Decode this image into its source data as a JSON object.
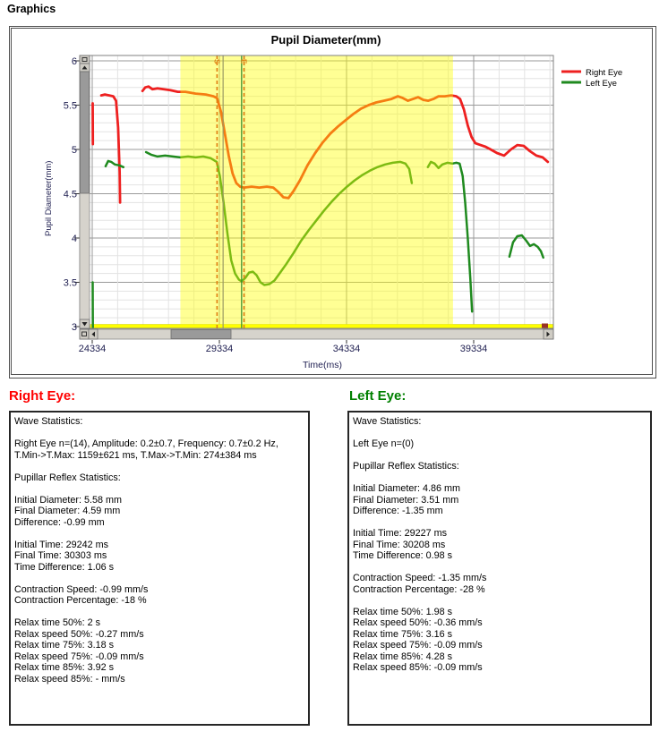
{
  "header": {
    "title": "Graphics"
  },
  "chart_data": {
    "type": "line",
    "title": "Pupil Diameter(mm)",
    "xlabel": "Time(ms)",
    "ylabel": "Pupil Diameter(mm)",
    "xlim": [
      24334,
      42468
    ],
    "ylim": [
      3,
      6
    ],
    "x_ticks": [
      "24334",
      "29334",
      "34334",
      "39334"
    ],
    "y_ticks": [
      "6",
      "5.5",
      "5",
      "4.5",
      "4",
      "3.5",
      "3"
    ],
    "grid": "on",
    "legend_position": "outside-top-right",
    "axis_text_color": "#1e1e50",
    "highlight_region": {
      "x0": 27800,
      "x1": 38520,
      "color": "#ffff00",
      "opacity": 0.42
    },
    "bottom_band": {
      "color": "#ffff00",
      "endcap_color": "#993322"
    },
    "markers": [
      {
        "label": "S",
        "t": 29242,
        "color": "#e07d10",
        "style": "dashed"
      },
      {
        "label": "",
        "t": 29480,
        "color": "#9a9a64",
        "style": "solid"
      },
      {
        "label": "",
        "t": 30208,
        "color": "#2e8b2e",
        "style": "solid"
      },
      {
        "label": "E",
        "t": 30303,
        "color": "#e07d10",
        "style": "dashed"
      }
    ],
    "series": [
      {
        "name": "Right Eye",
        "color": "#ee2020",
        "width": 2.8,
        "segments": [
          [
            [
              24350,
              5.52
            ],
            [
              24360,
              5.06
            ]
          ],
          [
            [
              24690,
              5.61
            ],
            [
              24830,
              5.62
            ],
            [
              25000,
              5.61
            ],
            [
              25160,
              5.6
            ],
            [
              25270,
              5.55
            ],
            [
              25350,
              5.25
            ],
            [
              25410,
              4.75
            ],
            [
              25430,
              4.4
            ]
          ],
          [
            [
              26310,
              5.66
            ],
            [
              26420,
              5.7
            ],
            [
              26550,
              5.71
            ],
            [
              26700,
              5.68
            ],
            [
              26900,
              5.69
            ],
            [
              27150,
              5.68
            ],
            [
              27400,
              5.67
            ],
            [
              27700,
              5.65
            ],
            [
              28000,
              5.65
            ],
            [
              28400,
              5.63
            ],
            [
              28800,
              5.62
            ],
            [
              29100,
              5.6
            ],
            [
              29242,
              5.58
            ],
            [
              29400,
              5.42
            ],
            [
              29550,
              5.18
            ],
            [
              29700,
              4.93
            ],
            [
              29850,
              4.73
            ],
            [
              30000,
              4.62
            ],
            [
              30150,
              4.58
            ],
            [
              30303,
              4.57
            ],
            [
              30600,
              4.58
            ],
            [
              30900,
              4.57
            ],
            [
              31200,
              4.58
            ],
            [
              31450,
              4.57
            ],
            [
              31650,
              4.52
            ],
            [
              31850,
              4.46
            ],
            [
              32050,
              4.45
            ],
            [
              32250,
              4.53
            ],
            [
              32500,
              4.65
            ],
            [
              32800,
              4.82
            ],
            [
              33100,
              4.96
            ],
            [
              33400,
              5.08
            ],
            [
              33700,
              5.18
            ],
            [
              34000,
              5.26
            ],
            [
              34300,
              5.33
            ],
            [
              34600,
              5.4
            ],
            [
              34900,
              5.46
            ],
            [
              35200,
              5.5
            ],
            [
              35500,
              5.53
            ],
            [
              35800,
              5.55
            ],
            [
              36100,
              5.57
            ],
            [
              36350,
              5.6
            ],
            [
              36550,
              5.58
            ],
            [
              36750,
              5.55
            ],
            [
              36950,
              5.57
            ],
            [
              37150,
              5.59
            ],
            [
              37350,
              5.56
            ],
            [
              37550,
              5.55
            ],
            [
              37750,
              5.57
            ],
            [
              37950,
              5.6
            ],
            [
              38200,
              5.6
            ],
            [
              38450,
              5.61
            ],
            [
              38650,
              5.6
            ],
            [
              38800,
              5.57
            ],
            [
              38950,
              5.45
            ],
            [
              39100,
              5.27
            ],
            [
              39250,
              5.14
            ],
            [
              39400,
              5.07
            ],
            [
              39600,
              5.05
            ],
            [
              39800,
              5.03
            ],
            [
              40000,
              5.0
            ],
            [
              40250,
              4.96
            ],
            [
              40530,
              4.93
            ],
            [
              40800,
              5.0
            ],
            [
              41050,
              5.05
            ],
            [
              41300,
              5.04
            ],
            [
              41550,
              4.98
            ],
            [
              41800,
              4.93
            ],
            [
              42050,
              4.91
            ],
            [
              42250,
              4.86
            ]
          ]
        ]
      },
      {
        "name": "Left Eye",
        "color": "#1f8a1f",
        "width": 2.5,
        "segments": [
          [
            [
              24350,
              3.5
            ],
            [
              24360,
              2.99
            ]
          ],
          [
            [
              24860,
              4.81
            ],
            [
              24960,
              4.87
            ],
            [
              25080,
              4.86
            ],
            [
              25220,
              4.83
            ],
            [
              25400,
              4.82
            ],
            [
              25560,
              4.8
            ]
          ],
          [
            [
              26450,
              4.97
            ],
            [
              26650,
              4.94
            ],
            [
              26900,
              4.92
            ],
            [
              27200,
              4.93
            ],
            [
              27500,
              4.92
            ],
            [
              27800,
              4.91
            ],
            [
              28100,
              4.92
            ],
            [
              28400,
              4.91
            ],
            [
              28700,
              4.92
            ],
            [
              29000,
              4.9
            ],
            [
              29227,
              4.86
            ],
            [
              29350,
              4.7
            ],
            [
              29500,
              4.4
            ],
            [
              29650,
              4.05
            ],
            [
              29800,
              3.75
            ],
            [
              29950,
              3.6
            ],
            [
              30100,
              3.53
            ],
            [
              30208,
              3.51
            ],
            [
              30350,
              3.55
            ],
            [
              30500,
              3.61
            ],
            [
              30650,
              3.62
            ],
            [
              30800,
              3.58
            ],
            [
              30950,
              3.5
            ],
            [
              31100,
              3.47
            ],
            [
              31300,
              3.48
            ],
            [
              31500,
              3.52
            ],
            [
              31700,
              3.6
            ],
            [
              31950,
              3.7
            ],
            [
              32250,
              3.83
            ],
            [
              32550,
              3.97
            ],
            [
              32850,
              4.09
            ],
            [
              33150,
              4.2
            ],
            [
              33450,
              4.31
            ],
            [
              33750,
              4.41
            ],
            [
              34050,
              4.5
            ],
            [
              34350,
              4.58
            ],
            [
              34650,
              4.65
            ],
            [
              34950,
              4.71
            ],
            [
              35250,
              4.76
            ],
            [
              35550,
              4.8
            ],
            [
              35850,
              4.83
            ],
            [
              36150,
              4.85
            ],
            [
              36450,
              4.86
            ],
            [
              36650,
              4.84
            ],
            [
              36800,
              4.78
            ],
            [
              36900,
              4.62
            ]
          ],
          [
            [
              37530,
              4.8
            ],
            [
              37650,
              4.86
            ],
            [
              37800,
              4.84
            ],
            [
              37950,
              4.79
            ],
            [
              38100,
              4.83
            ],
            [
              38300,
              4.85
            ],
            [
              38500,
              4.84
            ],
            [
              38650,
              4.85
            ],
            [
              38780,
              4.84
            ],
            [
              38900,
              4.7
            ],
            [
              39000,
              4.4
            ],
            [
              39100,
              4.0
            ],
            [
              39200,
              3.55
            ],
            [
              39270,
              3.17
            ]
          ],
          [
            [
              40740,
              3.79
            ],
            [
              40880,
              3.95
            ],
            [
              41050,
              4.02
            ],
            [
              41230,
              4.03
            ],
            [
              41400,
              3.97
            ],
            [
              41550,
              3.91
            ],
            [
              41700,
              3.93
            ],
            [
              41850,
              3.9
            ],
            [
              41980,
              3.85
            ],
            [
              42070,
              3.78
            ]
          ]
        ]
      }
    ]
  },
  "legend": {
    "items": [
      {
        "label": "Right Eye",
        "color": "#ee2020"
      },
      {
        "label": "Left Eye",
        "color": "#1f8a1f"
      }
    ]
  },
  "right_eye_panel": {
    "title": "Right Eye:",
    "color": "#ff0000",
    "lines": [
      "Wave Statistics:",
      "",
      "Right Eye n=(14), Amplitude: 0.2±0.7, Frequency: 0.7±0.2 Hz,",
      "T.Min->T.Max: 1159±621 ms, T.Max->T.Min: 274±384 ms",
      "",
      "Pupillar Reflex Statistics:",
      "",
      "Initial Diameter: 5.58 mm",
      "Final Diameter: 4.59 mm",
      "Difference: -0.99 mm",
      "",
      "Initial Time: 29242 ms",
      "Final Time: 30303 ms",
      "Time Difference: 1.06 s",
      "",
      "Contraction Speed: -0.99 mm/s",
      "Contraction Percentage: -18 %",
      "",
      "Relax time 50%: 2 s",
      "Relax speed 50%: -0.27 mm/s",
      "Relax time 75%: 3.18 s",
      "Relax speed 75%: -0.09 mm/s",
      "Relax time 85%: 3.92 s",
      "Relax speed 85%: - mm/s"
    ]
  },
  "left_eye_panel": {
    "title": "Left Eye:",
    "color": "#008000",
    "lines": [
      "Wave Statistics:",
      "",
      "Left Eye n=(0)",
      "",
      "Pupillar Reflex Statistics:",
      "",
      "Initial Diameter: 4.86 mm",
      "Final Diameter: 3.51 mm",
      "Difference: -1.35 mm",
      "",
      "Initial Time: 29227 ms",
      "Final Time: 30208 ms",
      "Time Difference: 0.98 s",
      "",
      "Contraction Speed: -1.35 mm/s",
      "Contraction Percentage: -28 %",
      "",
      "Relax time 50%: 1.98 s",
      "Relax speed 50%: -0.36 mm/s",
      "Relax time 75%: 3.16 s",
      "Relax speed 75%: -0.09 mm/s",
      "Relax time 85%: 4.28 s",
      "Relax speed 85%: -0.09 mm/s"
    ]
  }
}
